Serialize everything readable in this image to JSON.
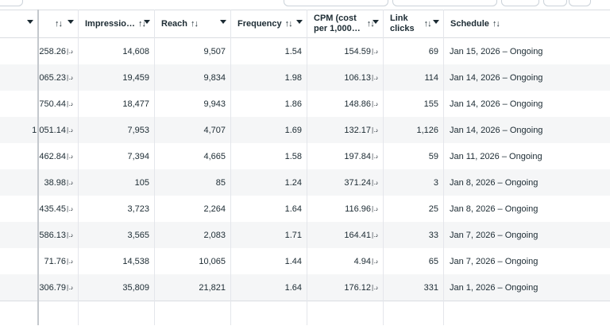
{
  "columns": {
    "c0": {
      "label": ""
    },
    "c1": {
      "label": ""
    },
    "impressions": {
      "label": "Impressio…"
    },
    "reach": {
      "label": "Reach"
    },
    "frequency": {
      "label": "Frequency"
    },
    "cpm": {
      "label_l1": "CPM (cost",
      "label_l2": "per 1,000…"
    },
    "link_clicks": {
      "label_l1": "Link",
      "label_l2": "clicks"
    },
    "schedule": {
      "label": "Schedule"
    }
  },
  "sort_glyph": "↑↓",
  "currency": "د.إ",
  "rows": [
    {
      "amount": ",258.26",
      "impressions": "14,608",
      "reach": "9,507",
      "frequency": "1.54",
      "cpm": "154.59",
      "link_clicks": "69",
      "schedule": "Jan 15, 2026 – Ongoing"
    },
    {
      "amount": ",065.23",
      "impressions": "19,459",
      "reach": "9,834",
      "frequency": "1.98",
      "cpm": "106.13",
      "link_clicks": "114",
      "schedule": "Jan 14, 2026 – Ongoing"
    },
    {
      "amount": ",750.44",
      "impressions": "18,477",
      "reach": "9,943",
      "frequency": "1.86",
      "cpm": "148.86",
      "link_clicks": "155",
      "schedule": "Jan 14, 2026 – Ongoing"
    },
    {
      "amount": "1,051.14",
      "impressions": "7,953",
      "reach": "4,707",
      "frequency": "1.69",
      "cpm": "132.17",
      "link_clicks": "1,126",
      "schedule": "Jan 14, 2026 – Ongoing"
    },
    {
      "amount": ",462.84",
      "impressions": "7,394",
      "reach": "4,665",
      "frequency": "1.58",
      "cpm": "197.84",
      "link_clicks": "59",
      "schedule": "Jan 11, 2026 – Ongoing"
    },
    {
      "amount": "38.98",
      "impressions": "105",
      "reach": "85",
      "frequency": "1.24",
      "cpm": "371.24",
      "link_clicks": "3",
      "schedule": "Jan 8, 2026 – Ongoing"
    },
    {
      "amount": "435.45",
      "impressions": "3,723",
      "reach": "2,264",
      "frequency": "1.64",
      "cpm": "116.96",
      "link_clicks": "25",
      "schedule": "Jan 8, 2026 – Ongoing"
    },
    {
      "amount": "586.13",
      "impressions": "3,565",
      "reach": "2,083",
      "frequency": "1.71",
      "cpm": "164.41",
      "link_clicks": "33",
      "schedule": "Jan 7, 2026 – Ongoing"
    },
    {
      "amount": "71.76",
      "impressions": "14,538",
      "reach": "10,065",
      "frequency": "1.44",
      "cpm": "4.94",
      "link_clicks": "65",
      "schedule": "Jan 7, 2026 – Ongoing"
    },
    {
      "amount": ",306.79",
      "impressions": "35,809",
      "reach": "21,821",
      "frequency": "1.64",
      "cpm": "176.12",
      "link_clicks": "331",
      "schedule": "Jan 1, 2026 – Ongoing"
    }
  ]
}
